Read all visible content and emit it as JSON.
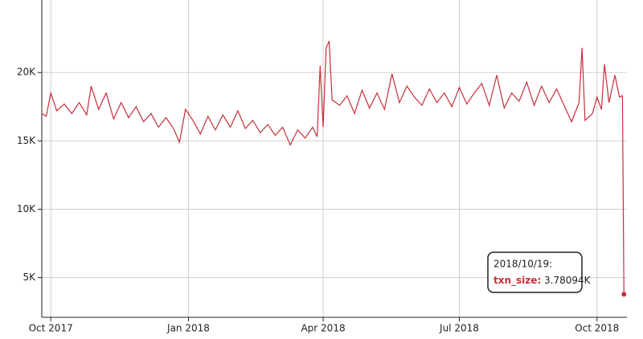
{
  "chart_data": {
    "type": "line",
    "x": [
      "2017-09-25",
      "2017-09-28",
      "2017-10-01",
      "2017-10-05",
      "2017-10-10",
      "2017-10-15",
      "2017-10-20",
      "2017-10-25",
      "2017-10-28",
      "2017-11-02",
      "2017-11-07",
      "2017-11-12",
      "2017-11-17",
      "2017-11-22",
      "2017-11-27",
      "2017-12-02",
      "2017-12-07",
      "2017-12-12",
      "2017-12-17",
      "2017-12-22",
      "2017-12-26",
      "2017-12-30",
      "2018-01-04",
      "2018-01-09",
      "2018-01-14",
      "2018-01-19",
      "2018-01-24",
      "2018-01-29",
      "2018-02-03",
      "2018-02-08",
      "2018-02-13",
      "2018-02-18",
      "2018-02-23",
      "2018-02-28",
      "2018-03-05",
      "2018-03-10",
      "2018-03-15",
      "2018-03-20",
      "2018-03-25",
      "2018-03-28",
      "2018-03-30",
      "2018-04-01",
      "2018-04-03",
      "2018-04-05",
      "2018-04-07",
      "2018-04-12",
      "2018-04-17",
      "2018-04-22",
      "2018-04-27",
      "2018-05-02",
      "2018-05-07",
      "2018-05-12",
      "2018-05-17",
      "2018-05-22",
      "2018-05-27",
      "2018-06-01",
      "2018-06-06",
      "2018-06-11",
      "2018-06-16",
      "2018-06-21",
      "2018-06-26",
      "2018-07-01",
      "2018-07-06",
      "2018-07-11",
      "2018-07-16",
      "2018-07-21",
      "2018-07-26",
      "2018-07-31",
      "2018-08-05",
      "2018-08-10",
      "2018-08-15",
      "2018-08-20",
      "2018-08-25",
      "2018-08-30",
      "2018-09-04",
      "2018-09-09",
      "2018-09-14",
      "2018-09-19",
      "2018-09-21",
      "2018-09-23",
      "2018-09-28",
      "2018-10-01",
      "2018-10-04",
      "2018-10-06",
      "2018-10-09",
      "2018-10-13",
      "2018-10-16",
      "2018-10-18",
      "2018-10-19"
    ],
    "series": [
      {
        "name": "txn_size",
        "color": "#c62f3a",
        "values": [
          17000,
          16800,
          18500,
          17200,
          17700,
          17000,
          17800,
          16900,
          19000,
          17300,
          18500,
          16600,
          17800,
          16700,
          17500,
          16400,
          17000,
          16000,
          16700,
          15900,
          14900,
          17300,
          16500,
          15500,
          16800,
          15800,
          16900,
          16000,
          17200,
          15900,
          16500,
          15600,
          16200,
          15400,
          16000,
          14700,
          15800,
          15200,
          16000,
          15300,
          20500,
          16000,
          21800,
          22300,
          18000,
          17600,
          18300,
          17000,
          18700,
          17400,
          18500,
          17300,
          19900,
          17800,
          19000,
          18200,
          17600,
          18800,
          17800,
          18500,
          17500,
          18900,
          17700,
          18500,
          19200,
          17600,
          19800,
          17400,
          18500,
          17900,
          19300,
          17600,
          19000,
          17800,
          18800,
          17600,
          16400,
          17800,
          21800,
          16500,
          17000,
          18200,
          17300,
          20600,
          17800,
          19800,
          18200,
          18300,
          3780.94
        ]
      }
    ],
    "xlim": [
      "2017-09-25",
      "2018-10-21"
    ],
    "xticks": [
      {
        "value": "2017-10-01",
        "label": "Oct 2017"
      },
      {
        "value": "2018-01-01",
        "label": "Jan 2018"
      },
      {
        "value": "2018-04-01",
        "label": "Apr 2018"
      },
      {
        "value": "2018-07-01",
        "label": "Jul 2018"
      },
      {
        "value": "2018-10-01",
        "label": "Oct 2018"
      }
    ],
    "ylim": [
      2100,
      25300
    ],
    "yticks": [
      {
        "value": 5000,
        "label": "5K"
      },
      {
        "value": 10000,
        "label": "10K"
      },
      {
        "value": 15000,
        "label": "15K"
      },
      {
        "value": 20000,
        "label": "20K"
      }
    ],
    "grid": true,
    "tooltip": {
      "date": "2018/10/19:",
      "name": "txn_size:",
      "value": "3.78094K"
    }
  }
}
